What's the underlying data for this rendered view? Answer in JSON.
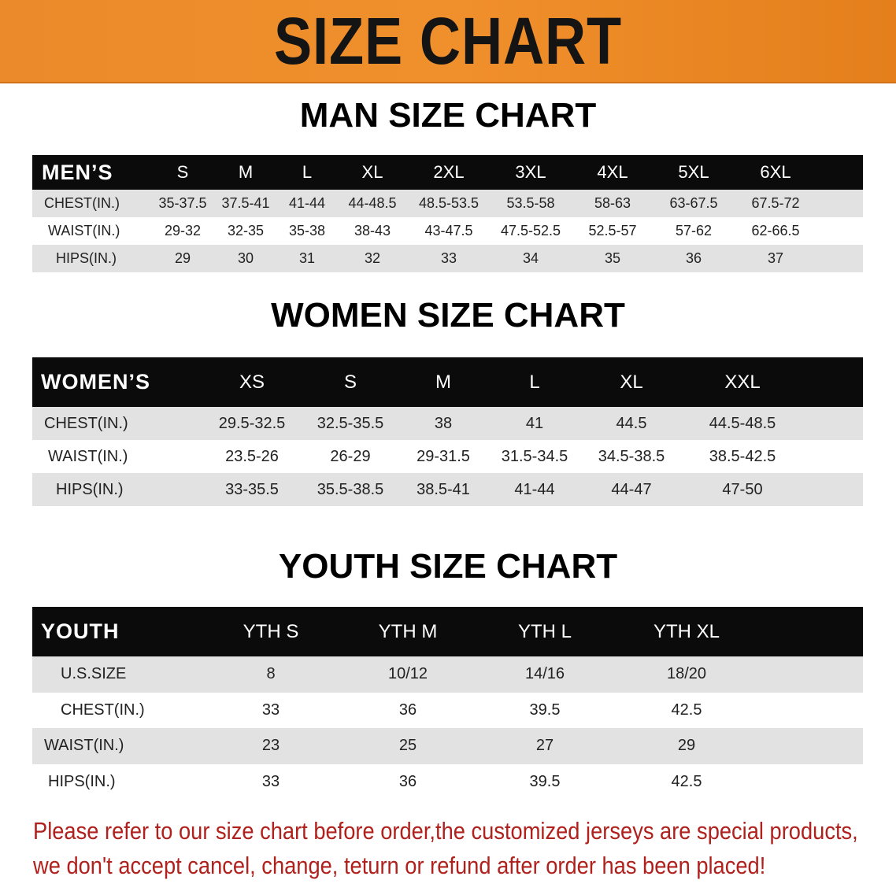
{
  "banner": {
    "title": "SIZE CHART",
    "color": "#f0902c"
  },
  "men": {
    "title": "MAN SIZE CHART",
    "header": [
      "MEN’S",
      "S",
      "M",
      "L",
      "XL",
      "2XL",
      "3XL",
      "4XL",
      "5XL",
      "6XL"
    ],
    "rows": [
      [
        "CHEST(IN.)",
        "35-37.5",
        "37.5-41",
        "41-44",
        "44-48.5",
        "48.5-53.5",
        "53.5-58",
        "58-63",
        "63-67.5",
        "67.5-72"
      ],
      [
        "WAIST(IN.)",
        "29-32",
        "32-35",
        "35-38",
        "38-43",
        "43-47.5",
        "47.5-52.5",
        "52.5-57",
        "57-62",
        "62-66.5"
      ],
      [
        "HIPS(IN.)",
        "29",
        "30",
        "31",
        "32",
        "33",
        "34",
        "35",
        "36",
        "37"
      ]
    ]
  },
  "women": {
    "title": "WOMEN SIZE CHART",
    "header": [
      "WOMEN’S",
      "XS",
      "S",
      "M",
      "L",
      "XL",
      "XXL"
    ],
    "rows": [
      [
        "CHEST(IN.)",
        "29.5-32.5",
        "32.5-35.5",
        "38",
        "41",
        "44.5",
        "44.5-48.5"
      ],
      [
        "WAIST(IN.)",
        "23.5-26",
        "26-29",
        "29-31.5",
        "31.5-34.5",
        "34.5-38.5",
        "38.5-42.5"
      ],
      [
        "HIPS(IN.)",
        "33-35.5",
        "35.5-38.5",
        "38.5-41",
        "41-44",
        "44-47",
        "47-50"
      ]
    ]
  },
  "youth": {
    "title": "YOUTH SIZE CHART",
    "header": [
      "YOUTH",
      "YTH S",
      "YTH M",
      "YTH L",
      "YTH XL"
    ],
    "rows": [
      [
        "U.S.SIZE",
        "8",
        "10/12",
        "14/16",
        "18/20"
      ],
      [
        "CHEST(IN.)",
        "33",
        "36",
        "39.5",
        "42.5"
      ],
      [
        "WAIST(IN.)",
        "23",
        "25",
        "27",
        "29"
      ],
      [
        "HIPS(IN.)",
        "33",
        "36",
        "39.5",
        "42.5"
      ]
    ]
  },
  "note": {
    "line1": "Please refer to our size chart before order,the customized jerseys are special products,",
    "line2": "we don't accept cancel, change, teturn or refund after order has been placed!",
    "color": "#b0201c"
  }
}
